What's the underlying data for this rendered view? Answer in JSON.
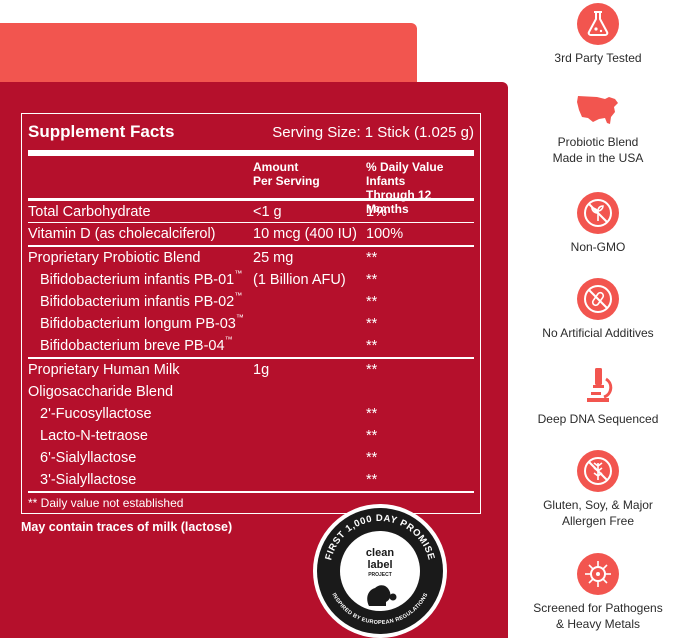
{
  "supplement_facts": {
    "title": "Supplement Facts",
    "serving_size": "Serving Size: 1 Stick (1.025 g)",
    "col_amount_line1": "Amount",
    "col_amount_line2": "Per Serving",
    "col_dv_line1": "% Daily Value Infants",
    "col_dv_line2": "Through 12 Months",
    "rows": [
      {
        "name": "Total Carbohydrate",
        "amount": "<1 g",
        "dv": "1%"
      },
      {
        "name": "Vitamin D (as cholecalciferol)",
        "amount": "10 mcg (400 IU)",
        "dv": "100%"
      },
      {
        "name": "Proprietary Probiotic Blend",
        "amount": "25 mg",
        "dv": "**"
      },
      {
        "name": "Bifidobacterium infantis PB-01",
        "tm": "™",
        "amount": "(1 Billion AFU)",
        "dv": "**"
      },
      {
        "name": "Bifidobacterium infantis PB-02",
        "tm": "™",
        "amount": "",
        "dv": "**"
      },
      {
        "name": "Bifidobacterium longum PB-03",
        "tm": "™",
        "amount": "",
        "dv": "**"
      },
      {
        "name": "Bifidobacterium breve PB-04",
        "tm": "™",
        "amount": "",
        "dv": "**"
      },
      {
        "name": "Proprietary Human Milk",
        "amount": "1g",
        "dv": "**"
      },
      {
        "name": "Oligosaccharide Blend",
        "amount": "",
        "dv": ""
      },
      {
        "name": "2'-Fucosyllactose",
        "amount": "",
        "dv": "**"
      },
      {
        "name": "Lacto-N-tetraose",
        "amount": "",
        "dv": "**"
      },
      {
        "name": "6'-Sialyllactose",
        "amount": "",
        "dv": "**"
      },
      {
        "name": "3'-Sialyllactose",
        "amount": "",
        "dv": "**"
      }
    ],
    "footnote": "** Daily value not established",
    "traces": "May contain traces of milk (lactose)"
  },
  "badge": {
    "ring_text_top": "FIRST 1,000 DAY PROMISE",
    "ring_text_bottom": "INSPIRED BY EUROPEAN REGULATIONS",
    "line1": "clean",
    "line2": "label",
    "line3": "PROJECT"
  },
  "features": [
    {
      "icon": "flask-icon",
      "label": "3rd Party Tested"
    },
    {
      "icon": "usa-map-icon",
      "label_line1": "Probiotic Blend",
      "label_line2": "Made in the USA"
    },
    {
      "icon": "no-gmo-icon",
      "label": "Non-GMO"
    },
    {
      "icon": "no-additives-icon",
      "label": "No Artificial Additives"
    },
    {
      "icon": "microscope-icon",
      "label": "Deep DNA Sequenced"
    },
    {
      "icon": "no-gluten-icon",
      "label_line1": "Gluten, Soy, & Major",
      "label_line2": "Allergen Free"
    },
    {
      "icon": "pathogen-icon",
      "label_line1": "Screened for Pathogens",
      "label_line2": "& Heavy Metals"
    }
  ],
  "colors": {
    "accent": "#f2554f",
    "panel": "#b5102c",
    "text_dark": "#2b2b2b"
  }
}
